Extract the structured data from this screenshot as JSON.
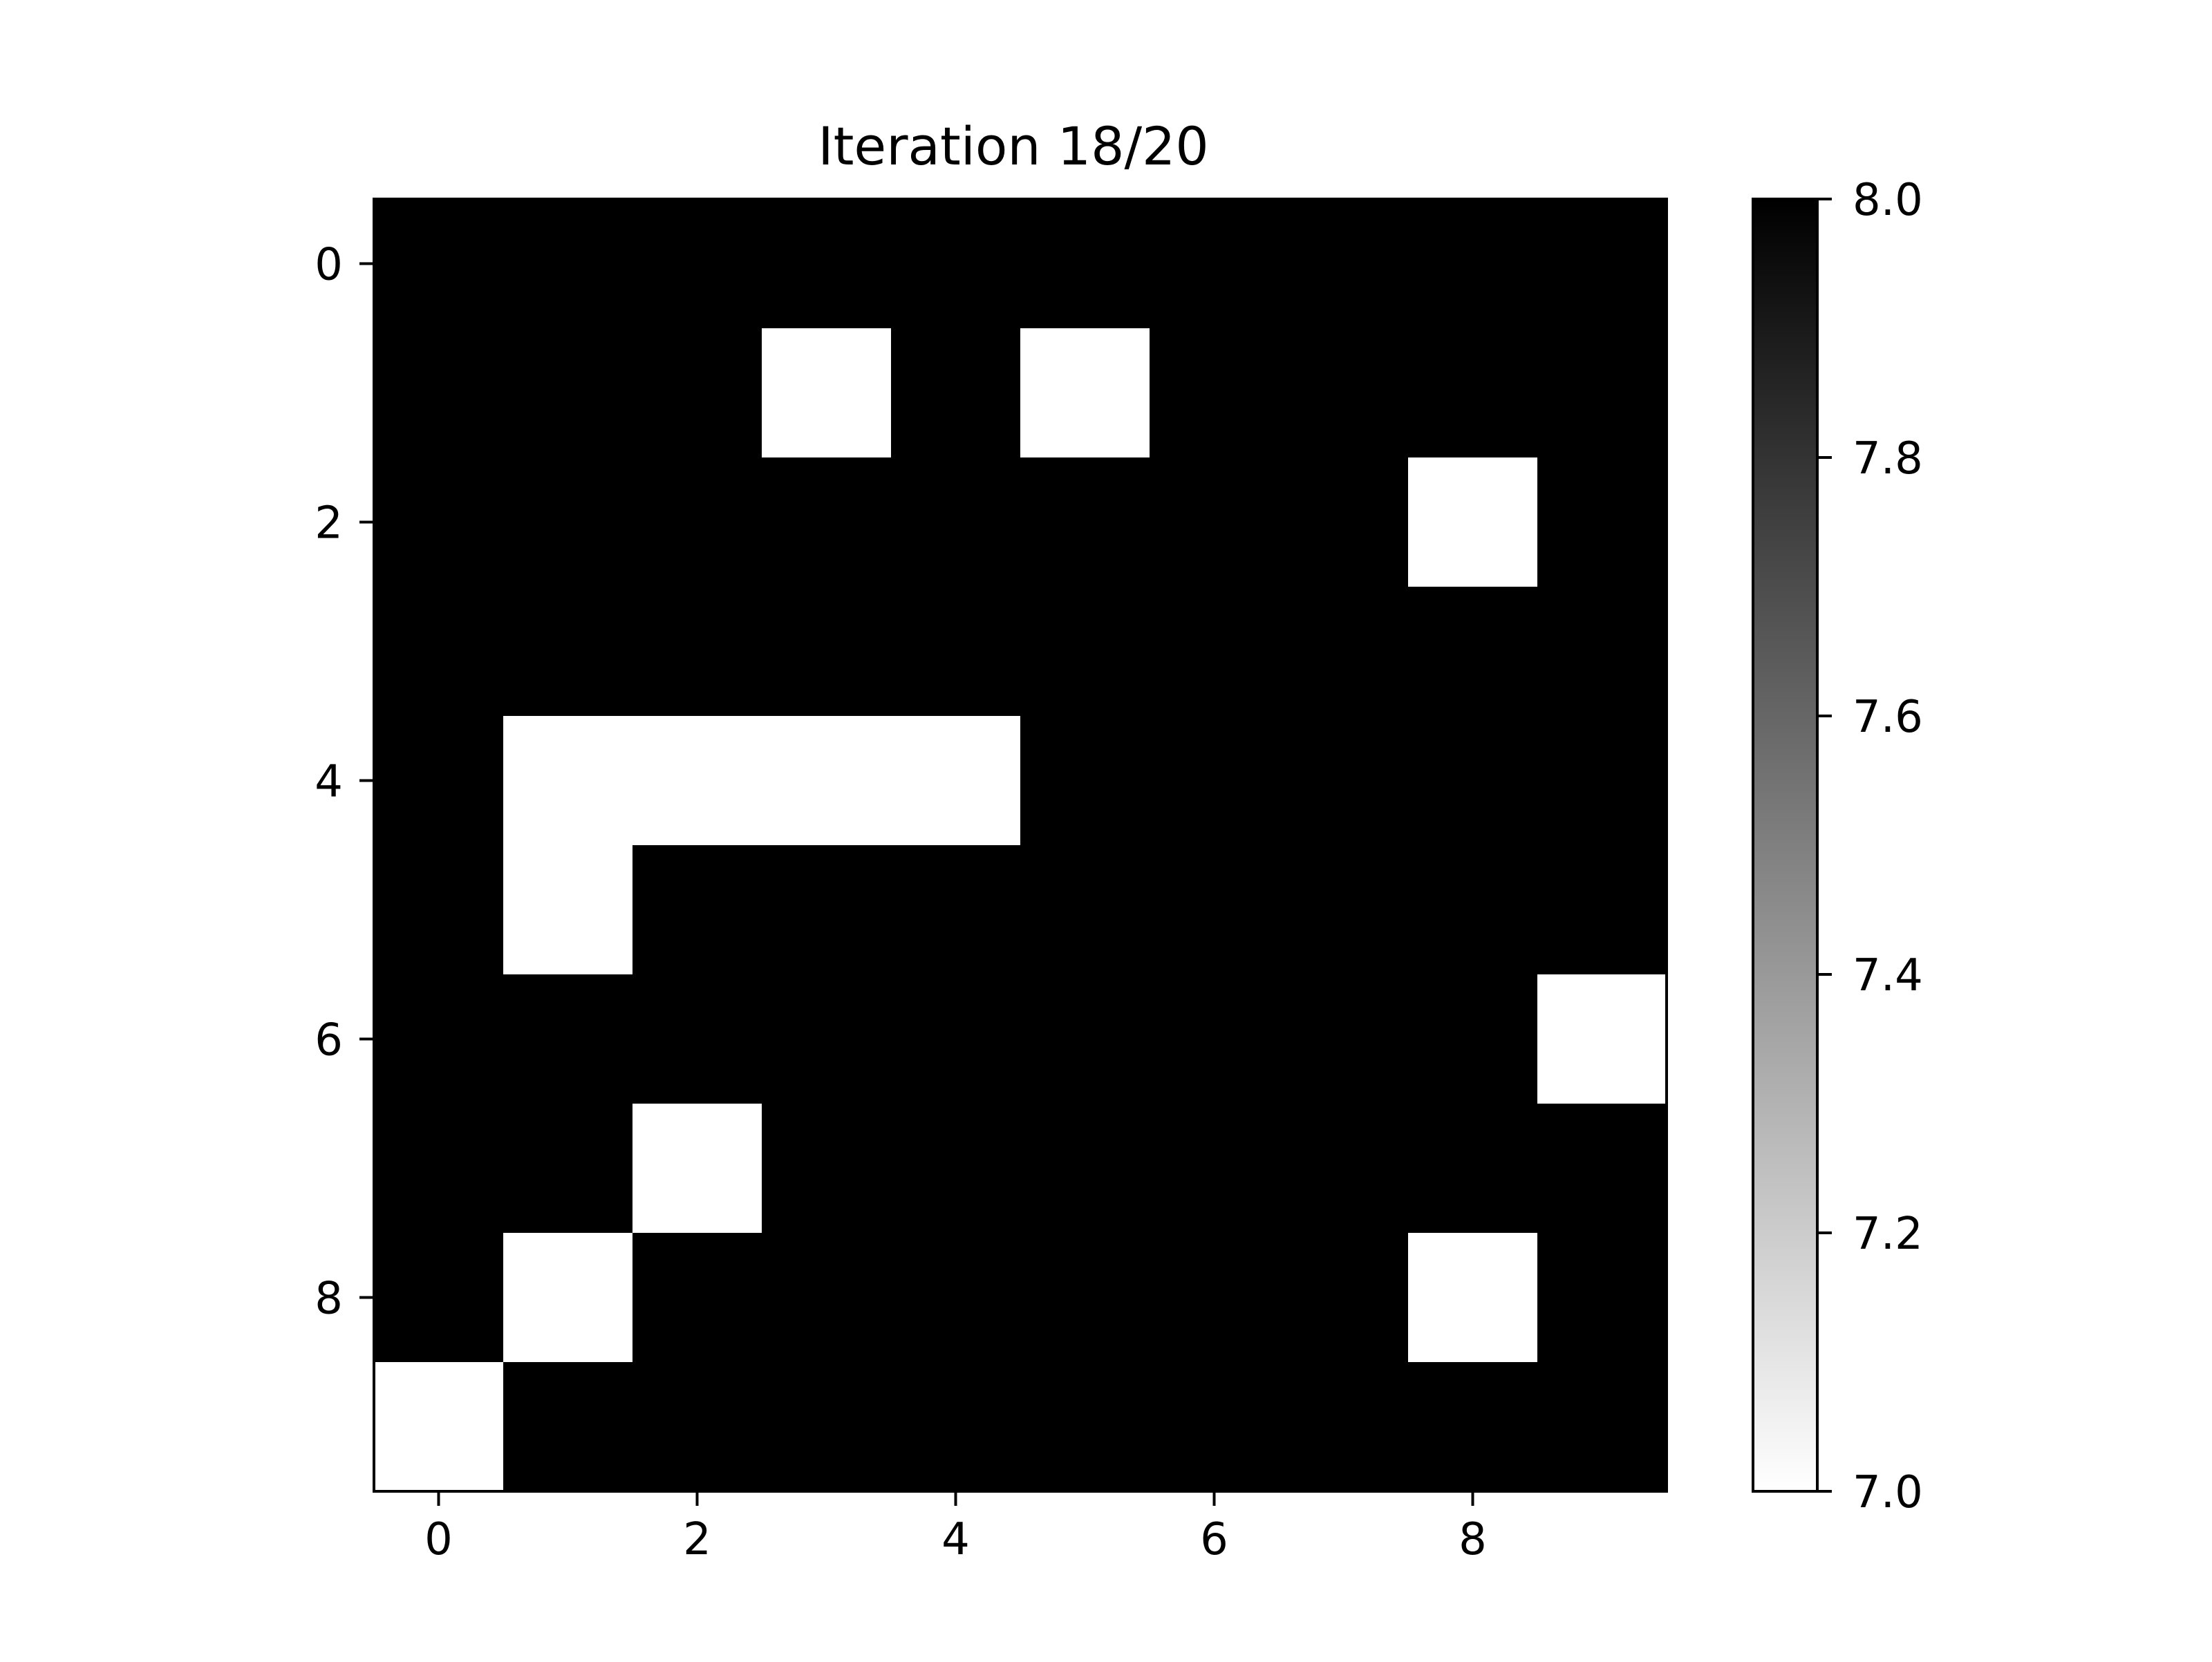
{
  "chart_data": {
    "type": "heatmap",
    "title": "Iteration 18/20",
    "xlabel": "",
    "ylabel": "",
    "rows": 10,
    "cols": 10,
    "x_ticks": [
      0,
      2,
      4,
      6,
      8
    ],
    "y_ticks": [
      0,
      2,
      4,
      6,
      8
    ],
    "x_tick_labels": [
      "0",
      "2",
      "4",
      "6",
      "8"
    ],
    "y_tick_labels": [
      "0",
      "2",
      "4",
      "6",
      "8"
    ],
    "values": [
      [
        8,
        8,
        8,
        8,
        8,
        8,
        8,
        8,
        8,
        8
      ],
      [
        8,
        8,
        8,
        7,
        8,
        7,
        8,
        8,
        8,
        8
      ],
      [
        8,
        8,
        8,
        8,
        8,
        8,
        8,
        8,
        7,
        8
      ],
      [
        8,
        8,
        8,
        8,
        8,
        8,
        8,
        8,
        8,
        8
      ],
      [
        8,
        7,
        7,
        7,
        7,
        8,
        8,
        8,
        8,
        8
      ],
      [
        8,
        7,
        8,
        8,
        8,
        8,
        8,
        8,
        8,
        8
      ],
      [
        8,
        8,
        8,
        8,
        8,
        8,
        8,
        8,
        8,
        7
      ],
      [
        8,
        8,
        7,
        8,
        8,
        8,
        8,
        8,
        8,
        8
      ],
      [
        8,
        7,
        8,
        8,
        8,
        8,
        8,
        8,
        7,
        8
      ],
      [
        7,
        8,
        8,
        8,
        8,
        8,
        8,
        8,
        8,
        8
      ]
    ],
    "colormap": "gray_r",
    "color_low": "#ffffff",
    "color_high": "#000000",
    "colorbar": {
      "range": [
        7.0,
        8.0
      ],
      "ticks": [
        7.0,
        7.2,
        7.4,
        7.6,
        7.8,
        8.0
      ],
      "tick_labels": [
        "7.0",
        "7.2",
        "7.4",
        "7.6",
        "7.8",
        "8.0"
      ],
      "placement": "right"
    },
    "grid": false
  }
}
